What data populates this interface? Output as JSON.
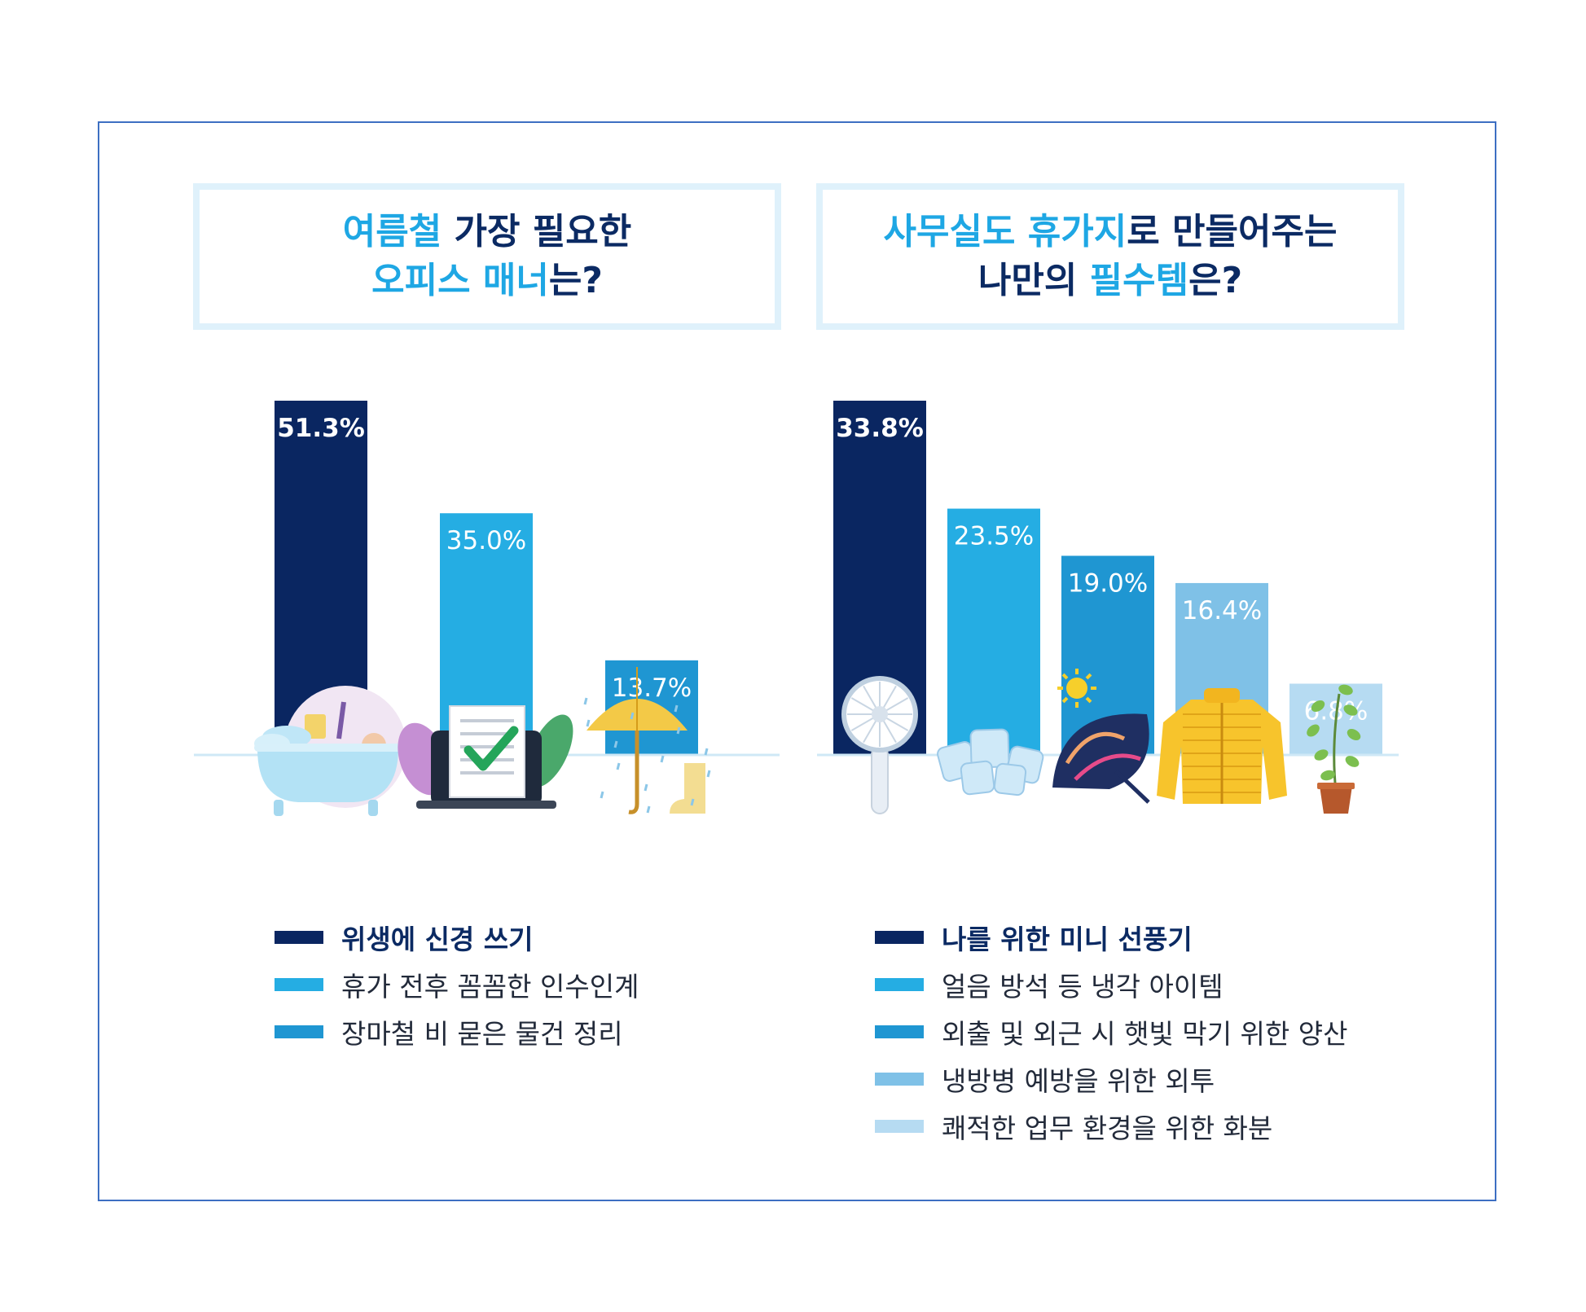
{
  "colors": {
    "navy": "#0a2661",
    "blue": "#25ade3",
    "mid_blue": "#1f96d2",
    "light_blue": "#7fc1e7",
    "pale_blue": "#b6dbf2",
    "frame": "#3d6fc2",
    "title_border": "#dff1fb"
  },
  "left": {
    "title": {
      "line1": [
        {
          "text": "여름철",
          "hl": true
        },
        {
          "text": " 가장 필요한",
          "hl": false
        }
      ],
      "line2": [
        {
          "text": "오피스 매너",
          "hl": true
        },
        {
          "text": "는?",
          "hl": false
        }
      ]
    },
    "chart_data": {
      "type": "bar",
      "categories": [
        "위생에 신경 쓰기",
        "휴가 전후 꼼꼼한 인수인계",
        "장마철 비 묻은 물건 정리"
      ],
      "values": [
        51.3,
        35.0,
        13.7
      ],
      "value_labels": [
        "51.3%",
        "35.0%",
        "13.7%"
      ],
      "colors": [
        "#0a2661",
        "#25ade3",
        "#1f96d2"
      ],
      "ylim": [
        0,
        51.3
      ],
      "icons": [
        "bathtub-icon",
        "document-check-icon",
        "umbrella-boot-icon"
      ]
    }
  },
  "right": {
    "title": {
      "line1": [
        {
          "text": "사무실도 휴가지",
          "hl": true
        },
        {
          "text": "로 만들어주는",
          "hl": false
        }
      ],
      "line2": [
        {
          "text": "나만의 ",
          "hl": false
        },
        {
          "text": "필수템",
          "hl": true
        },
        {
          "text": "은?",
          "hl": false
        }
      ]
    },
    "chart_data": {
      "type": "bar",
      "categories": [
        "나를 위한 미니 선풍기",
        "얼음 방석 등 냉각 아이템",
        "외출 및 외근 시 햇빛 막기 위한 양산",
        "냉방병 예방을 위한 외투",
        "쾌적한 업무 환경을 위한 화분"
      ],
      "values": [
        33.8,
        23.5,
        19.0,
        16.4,
        6.8
      ],
      "value_labels": [
        "33.8%",
        "23.5%",
        "19.0%",
        "16.4%",
        "6.8%"
      ],
      "colors": [
        "#0a2661",
        "#25ade3",
        "#1f96d2",
        "#7fc1e7",
        "#b6dbf2"
      ],
      "ylim": [
        0,
        33.8
      ],
      "icons": [
        "mini-fan-icon",
        "ice-cubes-icon",
        "parasol-icon",
        "padded-jacket-icon",
        "potted-plant-icon"
      ]
    }
  }
}
